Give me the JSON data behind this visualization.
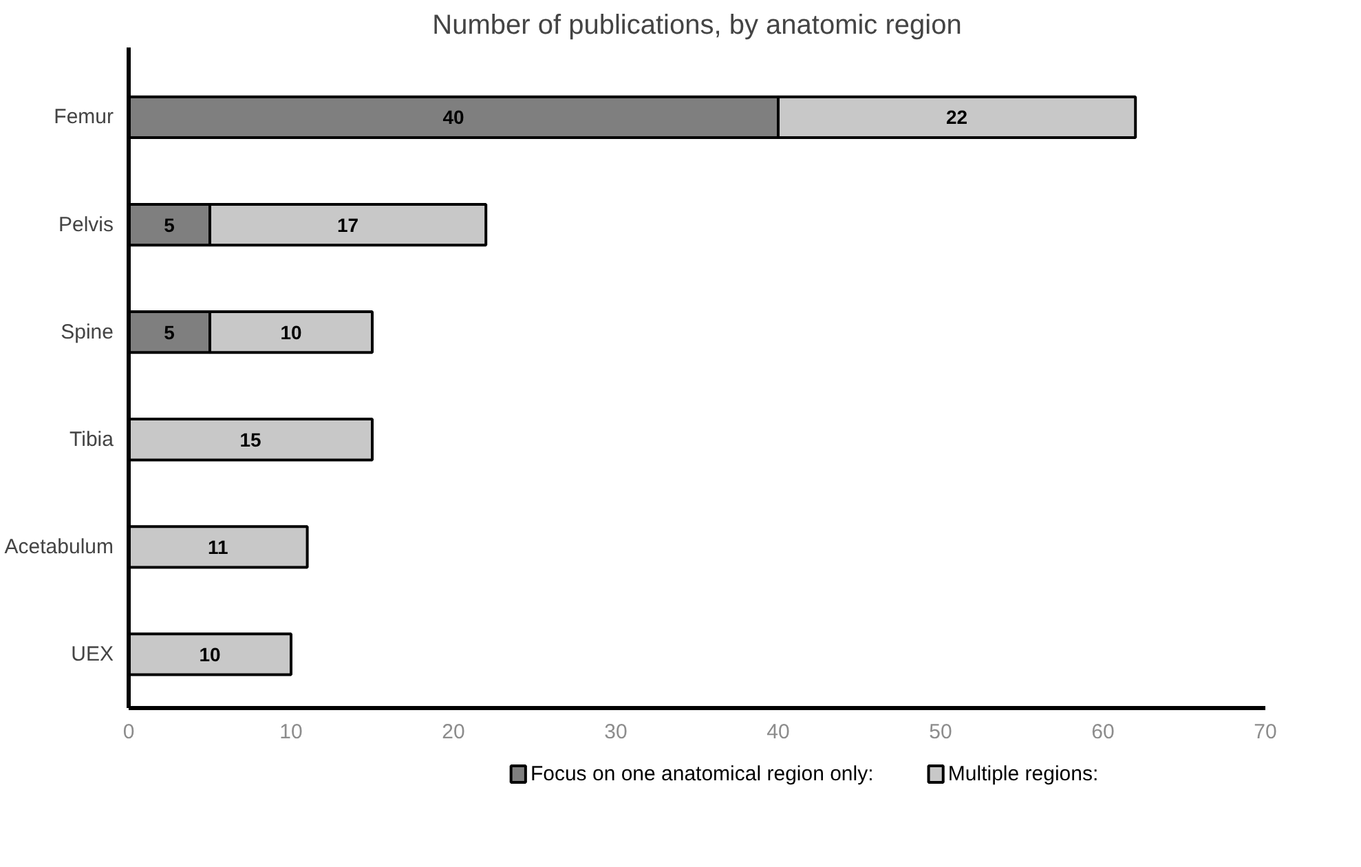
{
  "chart_data": {
    "type": "bar",
    "orientation": "horizontal",
    "stacked": true,
    "title": "Number of publications, by anatomic region",
    "categories": [
      "Femur",
      "Pelvis",
      "Spine",
      "Tibia",
      "Acetabulum",
      "UEX"
    ],
    "series": [
      {
        "name": "Focus on one anatomical region only:",
        "color": "#7f7f7f",
        "values": [
          40,
          5,
          5,
          null,
          null,
          null
        ]
      },
      {
        "name": "Multiple regions:",
        "color": "#c8c8c8",
        "values": [
          22,
          17,
          10,
          15,
          11,
          10
        ]
      }
    ],
    "xlim": [
      0,
      70
    ],
    "xticks": [
      0,
      10,
      20,
      30,
      40,
      50,
      60,
      70
    ],
    "grid": false,
    "legend": "bottom",
    "data_labels": true
  }
}
